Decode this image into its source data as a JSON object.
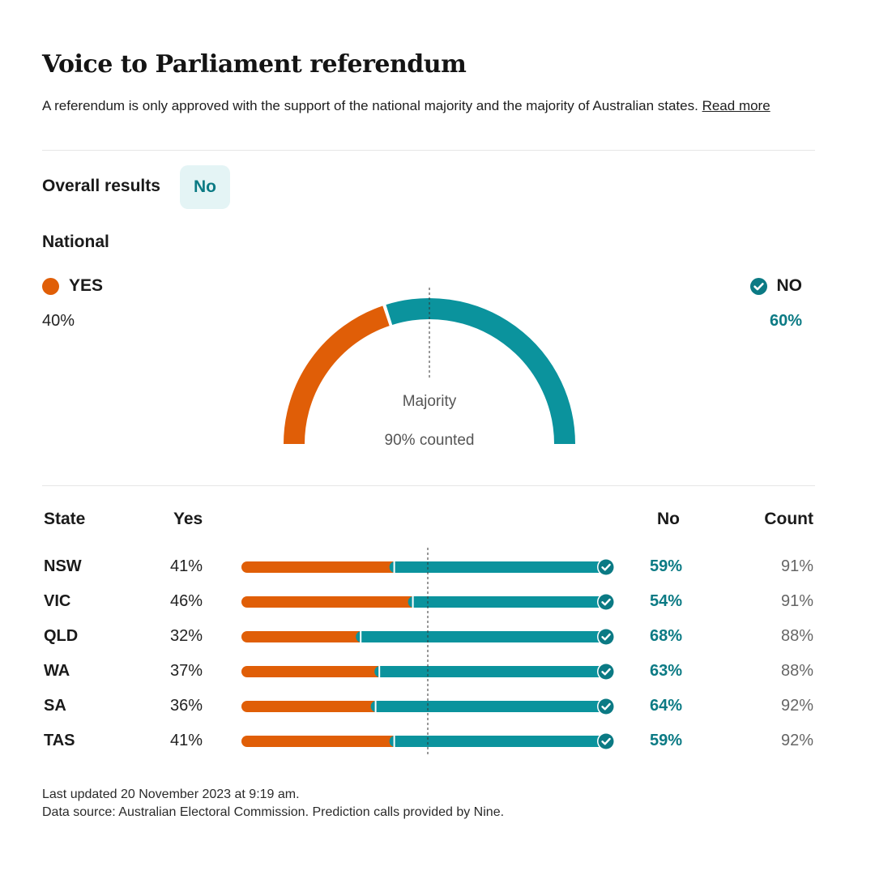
{
  "header": {
    "title": "Voice to Parliament referendum",
    "intro": "A referendum is only approved with the support of the national majority and the majority of Australian states.",
    "read_more": "Read more"
  },
  "overall": {
    "label": "Overall results",
    "result": "No"
  },
  "national": {
    "label": "National",
    "yes_label": "YES",
    "yes_pct": "40%",
    "no_label": "NO",
    "no_pct": "60%",
    "majority_label": "Majority",
    "counted_label": "90% counted"
  },
  "colors": {
    "yes": "#e05e07",
    "no": "#0b939d",
    "no_text": "#0b7a84",
    "badge_bg": "#e4f4f5"
  },
  "table": {
    "headers": {
      "state": "State",
      "yes": "Yes",
      "no": "No",
      "count": "Count"
    }
  },
  "chart_data": {
    "type": "bar",
    "stacked": true,
    "orientation": "horizontal",
    "national": {
      "yes": 40,
      "no": 60,
      "counted": 90,
      "winner": "NO"
    },
    "categories": [
      "NSW",
      "VIC",
      "QLD",
      "WA",
      "SA",
      "TAS"
    ],
    "series": [
      {
        "name": "Yes",
        "values": [
          41,
          46,
          32,
          37,
          36,
          41
        ]
      },
      {
        "name": "No",
        "values": [
          59,
          54,
          68,
          63,
          64,
          59
        ]
      }
    ],
    "count": [
      91,
      91,
      88,
      88,
      92,
      92
    ],
    "winner": [
      "No",
      "No",
      "No",
      "No",
      "No",
      "No"
    ],
    "majority_line": 50,
    "xlim": [
      0,
      100
    ]
  },
  "footer": {
    "updated": "Last updated 20 November 2023 at 9:19 am.",
    "source": "Data source: Australian Electoral Commission. Prediction calls provided by Nine."
  }
}
